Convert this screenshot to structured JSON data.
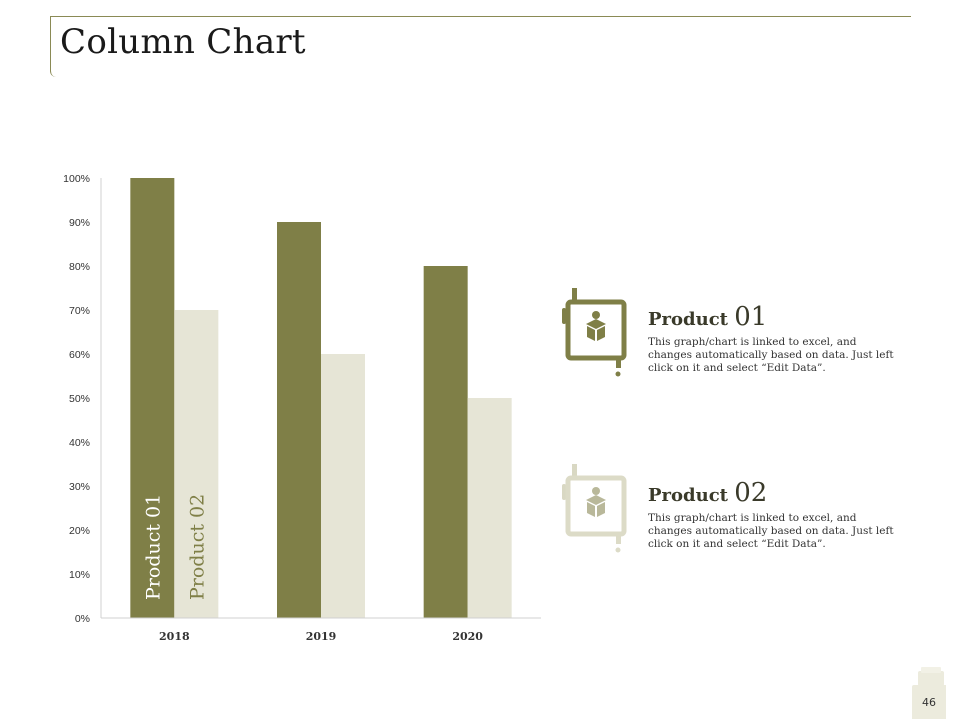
{
  "title": "Column Chart",
  "chart_data": {
    "type": "bar",
    "categories": [
      "2018",
      "2019",
      "2020"
    ],
    "series": [
      {
        "name": "Product 01",
        "values": [
          100,
          90,
          80
        ],
        "color": "#7f7f47"
      },
      {
        "name": "Product 02",
        "values": [
          70,
          60,
          50
        ],
        "color": "#e6e5d6"
      }
    ],
    "yticks": [
      "0%",
      "10%",
      "20%",
      "30%",
      "40%",
      "50%",
      "60%",
      "70%",
      "80%",
      "90%",
      "100%"
    ],
    "ylim": [
      0,
      100
    ],
    "grid": false
  },
  "legend": [
    {
      "label_word": "Product",
      "label_num": "01",
      "icon": "box-icon",
      "color": "#7f7f47",
      "desc": "This graph/chart  is linked to excel, and changes automatically based on data. Just left click on it and select “Edit Data”."
    },
    {
      "label_word": "Product",
      "label_num": "02",
      "icon": "box-icon",
      "color": "#e6e5d6",
      "desc": "This graph/chart  is linked to excel, and changes automatically based on data. Just left click on it and select “Edit Data”."
    }
  ],
  "page_number": "46"
}
